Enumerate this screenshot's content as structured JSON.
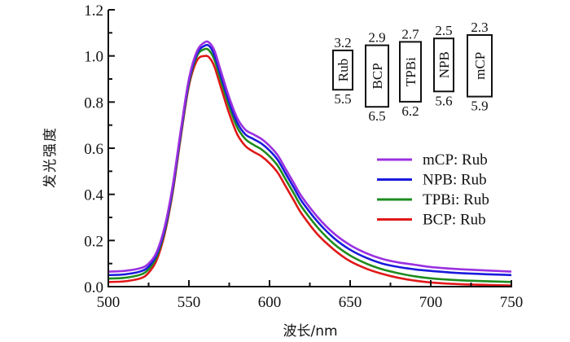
{
  "chart_data": {
    "type": "line",
    "title": "",
    "xlabel": "波长/nm",
    "ylabel": "发光强度",
    "xlim": [
      500,
      750
    ],
    "ylim": [
      0.0,
      1.2
    ],
    "xticks": [
      500,
      550,
      600,
      650,
      700,
      750
    ],
    "xtick_labels": [
      "500",
      "550",
      "600",
      "650",
      "700",
      "750"
    ],
    "yticks": [
      0.0,
      0.2,
      0.4,
      0.6,
      0.8,
      1.0,
      1.2
    ],
    "ytick_labels": [
      "0.0",
      "0.2",
      "0.4",
      "0.6",
      "0.8",
      "1.0",
      "1.2"
    ],
    "grid": false,
    "legend_position": "right",
    "x": [
      500,
      510,
      520,
      525,
      530,
      535,
      540,
      545,
      550,
      555,
      560,
      563,
      566,
      570,
      575,
      580,
      585,
      590,
      595,
      600,
      605,
      610,
      615,
      620,
      630,
      640,
      650,
      660,
      670,
      680,
      690,
      700,
      720,
      750
    ],
    "series": [
      {
        "name": "mCP: Rub",
        "color": "#9b30e0",
        "values": [
          0.065,
          0.068,
          0.08,
          0.1,
          0.15,
          0.26,
          0.44,
          0.68,
          0.9,
          1.02,
          1.06,
          1.055,
          1.02,
          0.93,
          0.82,
          0.73,
          0.68,
          0.66,
          0.64,
          0.61,
          0.57,
          0.51,
          0.45,
          0.39,
          0.3,
          0.23,
          0.18,
          0.145,
          0.12,
          0.105,
          0.095,
          0.085,
          0.075,
          0.065
        ]
      },
      {
        "name": "NPB: Rub",
        "color": "#1a1adc",
        "values": [
          0.05,
          0.053,
          0.066,
          0.087,
          0.14,
          0.25,
          0.43,
          0.67,
          0.89,
          1.01,
          1.045,
          1.04,
          1.0,
          0.91,
          0.8,
          0.71,
          0.66,
          0.64,
          0.62,
          0.59,
          0.55,
          0.49,
          0.43,
          0.37,
          0.28,
          0.21,
          0.16,
          0.125,
          0.1,
          0.085,
          0.075,
          0.068,
          0.058,
          0.05
        ]
      },
      {
        "name": "TPBi: Rub",
        "color": "#1e8c1e",
        "values": [
          0.035,
          0.038,
          0.052,
          0.075,
          0.13,
          0.24,
          0.42,
          0.66,
          0.88,
          1.0,
          1.03,
          1.02,
          0.98,
          0.89,
          0.78,
          0.69,
          0.64,
          0.615,
          0.595,
          0.565,
          0.525,
          0.465,
          0.405,
          0.345,
          0.255,
          0.185,
          0.135,
          0.1,
          0.075,
          0.058,
          0.045,
          0.036,
          0.027,
          0.02
        ]
      },
      {
        "name": "BCP: Rub",
        "color": "#e01818",
        "values": [
          0.02,
          0.023,
          0.036,
          0.06,
          0.115,
          0.23,
          0.41,
          0.65,
          0.87,
          0.98,
          1.0,
          0.99,
          0.95,
          0.86,
          0.75,
          0.66,
          0.61,
          0.585,
          0.565,
          0.535,
          0.495,
          0.435,
          0.375,
          0.315,
          0.225,
          0.16,
          0.11,
          0.078,
          0.055,
          0.038,
          0.026,
          0.018,
          0.01,
          0.005
        ]
      }
    ],
    "inset_energy_levels": [
      {
        "label": "Rub",
        "lumo": "3.2",
        "homo": "5.5"
      },
      {
        "label": "BCP",
        "lumo": "2.9",
        "homo": "6.5"
      },
      {
        "label": "TPBi",
        "lumo": "2.7",
        "homo": "6.2"
      },
      {
        "label": "NPB",
        "lumo": "2.5",
        "homo": "5.6"
      },
      {
        "label": "mCP",
        "lumo": "2.3",
        "homo": "5.9"
      }
    ]
  }
}
